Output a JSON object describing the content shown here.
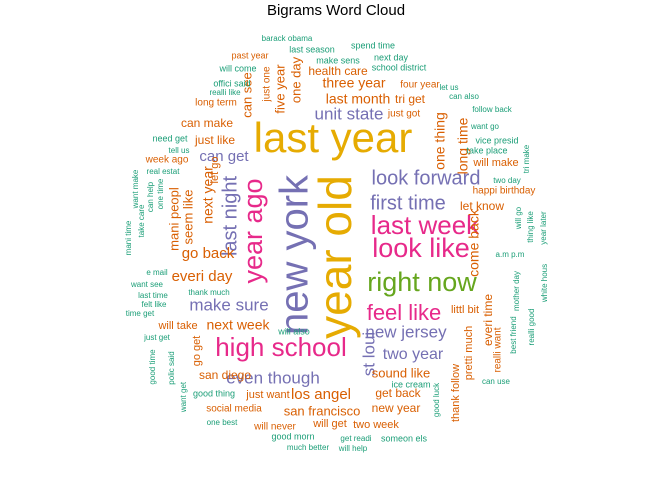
{
  "palette": {
    "teal": "#1b9e77",
    "orange": "#d95f02",
    "purple": "#7570b3",
    "pink": "#e7298a",
    "green": "#66a61e",
    "gold": "#e6ab02"
  },
  "chart_data": {
    "type": "wordcloud",
    "title": "Bigrams Word Cloud",
    "words": [
      {
        "text": "last year",
        "freq": 100,
        "color": "gold"
      },
      {
        "text": "year old",
        "freq": 96,
        "color": "gold"
      },
      {
        "text": "new york",
        "freq": 90,
        "color": "purple"
      },
      {
        "text": "year ago",
        "freq": 62,
        "color": "pink"
      },
      {
        "text": "high school",
        "freq": 58,
        "color": "pink"
      },
      {
        "text": "right now",
        "freq": 58,
        "color": "green"
      },
      {
        "text": "look like",
        "freq": 56,
        "color": "pink"
      },
      {
        "text": "last week",
        "freq": 54,
        "color": "pink"
      },
      {
        "text": "feel like",
        "freq": 48,
        "color": "pink"
      },
      {
        "text": "last night",
        "freq": 42,
        "color": "purple"
      },
      {
        "text": "first time",
        "freq": 40,
        "color": "purple"
      },
      {
        "text": "look forward",
        "freq": 40,
        "color": "purple"
      },
      {
        "text": "make sure",
        "freq": 34,
        "color": "purple"
      },
      {
        "text": "new jersey",
        "freq": 32,
        "color": "purple"
      },
      {
        "text": "even though",
        "freq": 32,
        "color": "purple"
      },
      {
        "text": "unit state",
        "freq": 32,
        "color": "purple"
      },
      {
        "text": "st loui",
        "freq": 32,
        "color": "purple"
      },
      {
        "text": "two year",
        "freq": 30,
        "color": "purple"
      },
      {
        "text": "go back",
        "freq": 28,
        "color": "orange"
      },
      {
        "text": "everi day",
        "freq": 28,
        "color": "orange"
      },
      {
        "text": "can get",
        "freq": 28,
        "color": "purple"
      },
      {
        "text": "los angel",
        "freq": 27,
        "color": "orange"
      },
      {
        "text": "one thing",
        "freq": 26,
        "color": "orange"
      },
      {
        "text": "come back",
        "freq": 26,
        "color": "orange"
      },
      {
        "text": "next year",
        "freq": 25,
        "color": "orange"
      },
      {
        "text": "next week",
        "freq": 25,
        "color": "orange"
      },
      {
        "text": "last month",
        "freq": 25,
        "color": "orange"
      },
      {
        "text": "three year",
        "freq": 24,
        "color": "orange"
      },
      {
        "text": "long time",
        "freq": 23,
        "color": "orange"
      },
      {
        "text": "san francisco",
        "freq": 23,
        "color": "orange"
      },
      {
        "text": "five year",
        "freq": 22,
        "color": "orange"
      },
      {
        "text": "one day",
        "freq": 22,
        "color": "orange"
      },
      {
        "text": "sound like",
        "freq": 22,
        "color": "orange"
      },
      {
        "text": "seem like",
        "freq": 22,
        "color": "orange"
      },
      {
        "text": "mani peopl",
        "freq": 22,
        "color": "orange"
      },
      {
        "text": "let know",
        "freq": 20,
        "color": "orange"
      },
      {
        "text": "new year",
        "freq": 20,
        "color": "orange"
      },
      {
        "text": "can see",
        "freq": 20,
        "color": "orange"
      },
      {
        "text": "can make",
        "freq": 20,
        "color": "orange"
      },
      {
        "text": "tri get",
        "freq": 20,
        "color": "orange"
      },
      {
        "text": "everi time",
        "freq": 20,
        "color": "orange"
      },
      {
        "text": "health care",
        "freq": 20,
        "color": "orange"
      },
      {
        "text": "san diego",
        "freq": 20,
        "color": "orange"
      },
      {
        "text": "just like",
        "freq": 20,
        "color": "orange"
      },
      {
        "text": "get back",
        "freq": 20,
        "color": "orange"
      },
      {
        "text": "thank follow",
        "freq": 20,
        "color": "orange"
      },
      {
        "text": "two week",
        "freq": 20,
        "color": "orange"
      },
      {
        "text": "will take",
        "freq": 18,
        "color": "orange"
      },
      {
        "text": "just want",
        "freq": 18,
        "color": "orange"
      },
      {
        "text": "will make",
        "freq": 18,
        "color": "orange"
      },
      {
        "text": "littl bit",
        "freq": 18,
        "color": "orange"
      },
      {
        "text": "just one",
        "freq": 18,
        "color": "orange"
      },
      {
        "text": "will get",
        "freq": 18,
        "color": "orange"
      },
      {
        "text": "pretti much",
        "freq": 18,
        "color": "orange"
      },
      {
        "text": "go get",
        "freq": 18,
        "color": "orange"
      },
      {
        "text": "let go",
        "freq": 18,
        "color": "orange"
      },
      {
        "text": "week ago",
        "freq": 16,
        "color": "orange"
      },
      {
        "text": "social media",
        "freq": 16,
        "color": "orange"
      },
      {
        "text": "will never",
        "freq": 16,
        "color": "orange"
      },
      {
        "text": "just got",
        "freq": 16,
        "color": "orange"
      },
      {
        "text": "long term",
        "freq": 16,
        "color": "orange"
      },
      {
        "text": "four year",
        "freq": 16,
        "color": "orange"
      },
      {
        "text": "realli want",
        "freq": 16,
        "color": "orange"
      },
      {
        "text": "happi birthday",
        "freq": 16,
        "color": "orange"
      },
      {
        "text": "past year",
        "freq": 15,
        "color": "orange"
      },
      {
        "text": "barack obama",
        "freq": 14,
        "color": "teal"
      },
      {
        "text": "last season",
        "freq": 14,
        "color": "teal"
      },
      {
        "text": "spend time",
        "freq": 14,
        "color": "teal"
      },
      {
        "text": "will come",
        "freq": 14,
        "color": "teal"
      },
      {
        "text": "make sens",
        "freq": 14,
        "color": "teal"
      },
      {
        "text": "next day",
        "freq": 14,
        "color": "teal"
      },
      {
        "text": "school district",
        "freq": 14,
        "color": "teal"
      },
      {
        "text": "offici said",
        "freq": 14,
        "color": "teal"
      },
      {
        "text": "realli like",
        "freq": 14,
        "color": "teal"
      },
      {
        "text": "let us",
        "freq": 14,
        "color": "teal"
      },
      {
        "text": "can also",
        "freq": 14,
        "color": "teal"
      },
      {
        "text": "follow back",
        "freq": 14,
        "color": "teal"
      },
      {
        "text": "want go",
        "freq": 14,
        "color": "teal"
      },
      {
        "text": "need get",
        "freq": 14,
        "color": "teal"
      },
      {
        "text": "tell us",
        "freq": 14,
        "color": "teal"
      },
      {
        "text": "real estat",
        "freq": 14,
        "color": "teal"
      },
      {
        "text": "vice presid",
        "freq": 14,
        "color": "teal"
      },
      {
        "text": "take place",
        "freq": 14,
        "color": "teal"
      },
      {
        "text": "tri make",
        "freq": 14,
        "color": "teal"
      },
      {
        "text": "two day",
        "freq": 14,
        "color": "teal"
      },
      {
        "text": "want make",
        "freq": 14,
        "color": "teal"
      },
      {
        "text": "can help",
        "freq": 14,
        "color": "teal"
      },
      {
        "text": "take care",
        "freq": 14,
        "color": "teal"
      },
      {
        "text": "one time",
        "freq": 14,
        "color": "teal"
      },
      {
        "text": "mani time",
        "freq": 14,
        "color": "teal"
      },
      {
        "text": "will go",
        "freq": 14,
        "color": "teal"
      },
      {
        "text": "thing like",
        "freq": 14,
        "color": "teal"
      },
      {
        "text": "year later",
        "freq": 14,
        "color": "teal"
      },
      {
        "text": "a.m p.m",
        "freq": 14,
        "color": "teal"
      },
      {
        "text": "e mail",
        "freq": 14,
        "color": "teal"
      },
      {
        "text": "want see",
        "freq": 14,
        "color": "teal"
      },
      {
        "text": "last time",
        "freq": 14,
        "color": "teal"
      },
      {
        "text": "felt like",
        "freq": 14,
        "color": "teal"
      },
      {
        "text": "time get",
        "freq": 14,
        "color": "teal"
      },
      {
        "text": "thank much",
        "freq": 14,
        "color": "teal"
      },
      {
        "text": "will also",
        "freq": 14,
        "color": "teal"
      },
      {
        "text": "mother day",
        "freq": 14,
        "color": "teal"
      },
      {
        "text": "white hous",
        "freq": 14,
        "color": "teal"
      },
      {
        "text": "best friend",
        "freq": 14,
        "color": "teal"
      },
      {
        "text": "realli good",
        "freq": 14,
        "color": "teal"
      },
      {
        "text": "just get",
        "freq": 14,
        "color": "teal"
      },
      {
        "text": "good time",
        "freq": 14,
        "color": "teal"
      },
      {
        "text": "polic said",
        "freq": 14,
        "color": "teal"
      },
      {
        "text": "ice cream",
        "freq": 14,
        "color": "teal"
      },
      {
        "text": "good thing",
        "freq": 14,
        "color": "teal"
      },
      {
        "text": "good luck",
        "freq": 14,
        "color": "teal"
      },
      {
        "text": "can use",
        "freq": 14,
        "color": "teal"
      },
      {
        "text": "want get",
        "freq": 14,
        "color": "teal"
      },
      {
        "text": "one best",
        "freq": 14,
        "color": "teal"
      },
      {
        "text": "good morn",
        "freq": 14,
        "color": "teal"
      },
      {
        "text": "much better",
        "freq": 14,
        "color": "teal"
      },
      {
        "text": "get readi",
        "freq": 14,
        "color": "teal"
      },
      {
        "text": "someon els",
        "freq": 14,
        "color": "teal"
      },
      {
        "text": "will help",
        "freq": 14,
        "color": "teal"
      }
    ]
  }
}
